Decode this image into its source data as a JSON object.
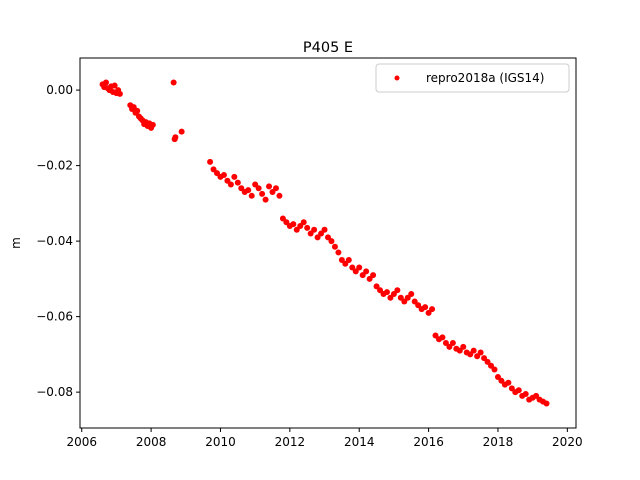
{
  "chart_data": {
    "type": "scatter",
    "title": "P405 E",
    "xlabel": "",
    "ylabel": "m",
    "xlim": [
      2005.95,
      2020.25
    ],
    "ylim": [
      -0.0895,
      0.0085
    ],
    "xticks": [
      2006,
      2008,
      2010,
      2012,
      2014,
      2016,
      2018,
      2020
    ],
    "xtick_labels": [
      "2006",
      "2008",
      "2010",
      "2012",
      "2014",
      "2016",
      "2018",
      "2020"
    ],
    "yticks": [
      0.0,
      -0.02,
      -0.04,
      -0.06,
      -0.08
    ],
    "ytick_labels": [
      "0.00",
      "−0.02",
      "−0.04",
      "−0.06",
      "−0.08"
    ],
    "legend_position": "top-right",
    "color": "#ff0000",
    "grid": false,
    "series": [
      {
        "name": "repro2018a (IGS14)",
        "x": [
          2006.6,
          2006.65,
          2006.7,
          2006.75,
          2006.8,
          2006.85,
          2006.9,
          2006.95,
          2007.0,
          2007.05,
          2007.1,
          2007.4,
          2007.45,
          2007.5,
          2007.55,
          2007.6,
          2007.65,
          2007.7,
          2007.75,
          2007.8,
          2007.85,
          2007.9,
          2007.95,
          2008.0,
          2008.05,
          2008.65,
          2008.7,
          2008.88,
          2008.68,
          2009.7,
          2009.8,
          2009.9,
          2010.0,
          2010.1,
          2010.2,
          2010.3,
          2010.4,
          2010.5,
          2010.6,
          2010.7,
          2010.8,
          2010.9,
          2011.0,
          2011.1,
          2011.2,
          2011.3,
          2011.4,
          2011.5,
          2011.6,
          2011.7,
          2011.8,
          2011.9,
          2012.0,
          2012.1,
          2012.2,
          2012.3,
          2012.4,
          2012.5,
          2012.6,
          2012.7,
          2012.8,
          2012.9,
          2013.0,
          2013.1,
          2013.2,
          2013.3,
          2013.4,
          2013.5,
          2013.6,
          2013.7,
          2013.8,
          2013.9,
          2014.0,
          2014.1,
          2014.2,
          2014.3,
          2014.4,
          2014.5,
          2014.6,
          2014.7,
          2014.8,
          2014.9,
          2015.0,
          2015.1,
          2015.2,
          2015.3,
          2015.4,
          2015.5,
          2015.6,
          2015.7,
          2015.8,
          2015.9,
          2016.0,
          2016.1,
          2016.2,
          2016.3,
          2016.4,
          2016.5,
          2016.6,
          2016.7,
          2016.8,
          2016.9,
          2017.0,
          2017.1,
          2017.2,
          2017.3,
          2017.4,
          2017.5,
          2017.6,
          2017.7,
          2017.8,
          2017.9,
          2018.0,
          2018.1,
          2018.2,
          2018.3,
          2018.4,
          2018.5,
          2018.6,
          2018.7,
          2018.8,
          2018.9,
          2019.0,
          2019.1,
          2019.2,
          2019.3,
          2019.4
        ],
        "y": [
          0.0015,
          0.0008,
          0.002,
          0.0005,
          0.0,
          0.001,
          -0.0005,
          0.0012,
          -0.0008,
          0.0,
          -0.001,
          -0.004,
          -0.005,
          -0.0045,
          -0.006,
          -0.0055,
          -0.007,
          -0.0075,
          -0.008,
          -0.009,
          -0.0085,
          -0.0095,
          -0.0088,
          -0.01,
          -0.0092,
          0.002,
          -0.0125,
          -0.011,
          -0.013,
          -0.019,
          -0.021,
          -0.022,
          -0.023,
          -0.0225,
          -0.024,
          -0.025,
          -0.023,
          -0.0245,
          -0.026,
          -0.027,
          -0.0265,
          -0.028,
          -0.025,
          -0.026,
          -0.0275,
          -0.029,
          -0.0255,
          -0.027,
          -0.026,
          -0.028,
          -0.034,
          -0.035,
          -0.036,
          -0.0355,
          -0.037,
          -0.036,
          -0.035,
          -0.0365,
          -0.038,
          -0.037,
          -0.039,
          -0.038,
          -0.037,
          -0.039,
          -0.04,
          -0.0415,
          -0.043,
          -0.045,
          -0.046,
          -0.045,
          -0.047,
          -0.048,
          -0.047,
          -0.049,
          -0.048,
          -0.05,
          -0.049,
          -0.052,
          -0.053,
          -0.054,
          -0.0535,
          -0.055,
          -0.054,
          -0.053,
          -0.055,
          -0.056,
          -0.055,
          -0.054,
          -0.056,
          -0.057,
          -0.058,
          -0.0575,
          -0.059,
          -0.058,
          -0.065,
          -0.066,
          -0.0655,
          -0.067,
          -0.068,
          -0.067,
          -0.0685,
          -0.069,
          -0.068,
          -0.0695,
          -0.07,
          -0.069,
          -0.0705,
          -0.0695,
          -0.071,
          -0.072,
          -0.073,
          -0.074,
          -0.076,
          -0.077,
          -0.078,
          -0.0775,
          -0.079,
          -0.08,
          -0.0795,
          -0.081,
          -0.0805,
          -0.082,
          -0.0815,
          -0.081,
          -0.082,
          -0.0825,
          -0.083
        ]
      }
    ]
  }
}
